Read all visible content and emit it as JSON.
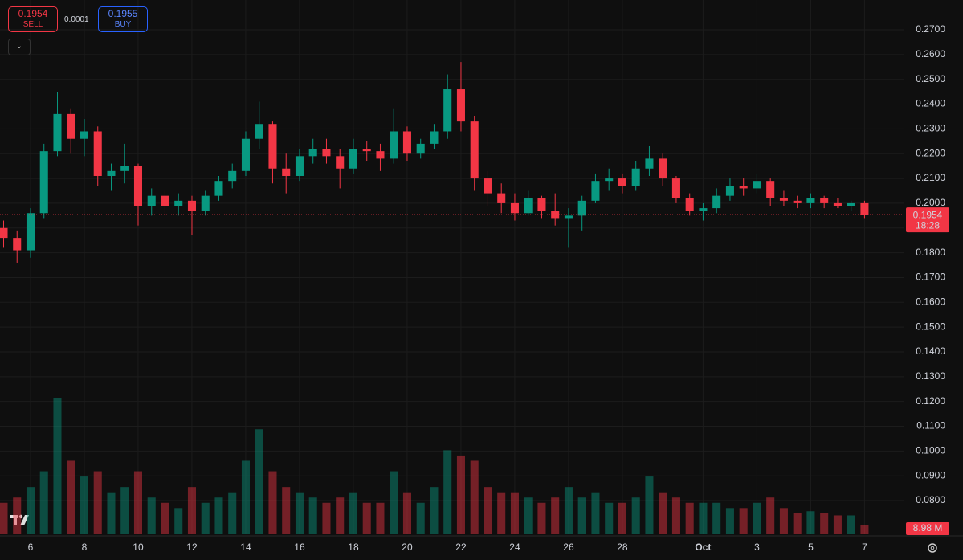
{
  "order_panel": {
    "sell_price": "0.1954",
    "sell_label": "SELL",
    "spread": "0.0001",
    "buy_price": "0.1955",
    "buy_label": "BUY"
  },
  "chart_data": {
    "type": "candlestick",
    "x": [
      5,
      5.5,
      6,
      6.5,
      7,
      7.5,
      8,
      8.5,
      9,
      9.5,
      10,
      10.5,
      11,
      11.5,
      12,
      12.5,
      13,
      13.5,
      14,
      14.5,
      15,
      15.5,
      16,
      16.5,
      17,
      17.5,
      18,
      18.5,
      19,
      19.5,
      20,
      20.5,
      21,
      21.5,
      22,
      22.5,
      23,
      23.5,
      24,
      24.5,
      25,
      25.5,
      26,
      26.5,
      27,
      27.5,
      28,
      28.5,
      29,
      29.5,
      30,
      30.5,
      31,
      31.5,
      32,
      32.5,
      33,
      33.5,
      34,
      34.5,
      35,
      35.5,
      36,
      36.5,
      37
    ],
    "open": [
      0.19,
      0.186,
      0.181,
      0.196,
      0.221,
      0.236,
      0.226,
      0.229,
      0.211,
      0.213,
      0.215,
      0.199,
      0.203,
      0.199,
      0.201,
      0.197,
      0.203,
      0.209,
      0.213,
      0.226,
      0.232,
      0.214,
      0.211,
      0.219,
      0.222,
      0.219,
      0.214,
      0.222,
      0.221,
      0.218,
      0.229,
      0.22,
      0.224,
      0.229,
      0.246,
      0.233,
      0.21,
      0.204,
      0.2,
      0.196,
      0.202,
      0.197,
      0.194,
      0.195,
      0.201,
      0.209,
      0.21,
      0.207,
      0.214,
      0.218,
      0.21,
      0.202,
      0.197,
      0.198,
      0.203,
      0.207,
      0.206,
      0.209,
      0.202,
      0.201,
      0.2,
      0.202,
      0.2,
      0.199,
      0.2
    ],
    "high": [
      0.193,
      0.189,
      0.198,
      0.224,
      0.245,
      0.238,
      0.234,
      0.231,
      0.216,
      0.224,
      0.216,
      0.206,
      0.205,
      0.204,
      0.203,
      0.205,
      0.211,
      0.216,
      0.229,
      0.241,
      0.233,
      0.22,
      0.222,
      0.226,
      0.226,
      0.222,
      0.226,
      0.225,
      0.224,
      0.238,
      0.231,
      0.226,
      0.232,
      0.252,
      0.257,
      0.235,
      0.213,
      0.208,
      0.204,
      0.205,
      0.203,
      0.204,
      0.198,
      0.203,
      0.212,
      0.214,
      0.212,
      0.217,
      0.223,
      0.22,
      0.211,
      0.204,
      0.2,
      0.206,
      0.21,
      0.21,
      0.212,
      0.21,
      0.205,
      0.203,
      0.204,
      0.203,
      0.202,
      0.201,
      0.201
    ],
    "low": [
      0.182,
      0.176,
      0.178,
      0.194,
      0.219,
      0.22,
      0.219,
      0.207,
      0.205,
      0.208,
      0.191,
      0.195,
      0.196,
      0.195,
      0.187,
      0.195,
      0.201,
      0.206,
      0.211,
      0.222,
      0.208,
      0.204,
      0.209,
      0.216,
      0.216,
      0.206,
      0.212,
      0.217,
      0.213,
      0.216,
      0.217,
      0.218,
      0.222,
      0.226,
      0.229,
      0.205,
      0.199,
      0.196,
      0.193,
      0.195,
      0.194,
      0.191,
      0.182,
      0.189,
      0.2,
      0.205,
      0.204,
      0.205,
      0.211,
      0.207,
      0.2,
      0.195,
      0.193,
      0.196,
      0.201,
      0.203,
      0.204,
      0.199,
      0.199,
      0.198,
      0.198,
      0.198,
      0.198,
      0.197,
      0.194
    ],
    "close": [
      0.186,
      0.181,
      0.196,
      0.221,
      0.236,
      0.226,
      0.229,
      0.211,
      0.213,
      0.215,
      0.199,
      0.203,
      0.199,
      0.201,
      0.197,
      0.203,
      0.209,
      0.213,
      0.226,
      0.232,
      0.214,
      0.211,
      0.219,
      0.222,
      0.219,
      0.214,
      0.222,
      0.221,
      0.218,
      0.229,
      0.22,
      0.224,
      0.229,
      0.246,
      0.233,
      0.21,
      0.204,
      0.2,
      0.196,
      0.202,
      0.197,
      0.194,
      0.195,
      0.201,
      0.209,
      0.21,
      0.207,
      0.214,
      0.218,
      0.21,
      0.202,
      0.197,
      0.198,
      0.203,
      0.207,
      0.206,
      0.209,
      0.202,
      0.201,
      0.2,
      0.202,
      0.2,
      0.199,
      0.2,
      0.1954
    ],
    "volume": [
      30,
      35,
      45,
      60,
      130,
      70,
      55,
      60,
      40,
      45,
      60,
      35,
      30,
      25,
      45,
      30,
      35,
      40,
      70,
      100,
      60,
      45,
      40,
      35,
      30,
      35,
      40,
      30,
      30,
      60,
      40,
      30,
      45,
      80,
      75,
      70,
      45,
      40,
      40,
      35,
      30,
      35,
      45,
      35,
      40,
      30,
      30,
      35,
      55,
      40,
      35,
      30,
      30,
      30,
      25,
      25,
      30,
      35,
      25,
      20,
      22,
      20,
      18,
      18,
      8.98
    ],
    "up_color": "#089981",
    "down_color": "#f23645",
    "xlim": [
      4.866,
      38.45
    ],
    "xticks": [
      6,
      8,
      10,
      12,
      14,
      16,
      18,
      20,
      22,
      24,
      26,
      28,
      {
        "value": 31,
        "label": "Oct"
      },
      {
        "value": 33,
        "label": "3"
      },
      {
        "value": 35,
        "label": "5"
      },
      {
        "value": 37,
        "label": "7"
      }
    ],
    "ylim": [
      0.0664,
      0.282
    ],
    "yticks": [
      {
        "value": 0.08,
        "label": "0.0800"
      },
      {
        "value": 0.09,
        "label": "0.0900"
      },
      {
        "value": 0.1,
        "label": "0.1000"
      },
      {
        "value": 0.11,
        "label": "0.1100"
      },
      {
        "value": 0.12,
        "label": "0.1200"
      },
      {
        "value": 0.13,
        "label": "0.1300"
      },
      {
        "value": 0.14,
        "label": "0.1400"
      },
      {
        "value": 0.15,
        "label": "0.1500"
      },
      {
        "value": 0.16,
        "label": "0.1600"
      },
      {
        "value": 0.17,
        "label": "0.1700"
      },
      {
        "value": 0.18,
        "label": "0.1800"
      },
      {
        "value": 0.19,
        "label": "0.1900"
      },
      {
        "value": 0.2,
        "label": "0.2000"
      },
      {
        "value": 0.21,
        "label": "0.2100"
      },
      {
        "value": 0.22,
        "label": "0.2200"
      },
      {
        "value": 0.23,
        "label": "0.2300"
      },
      {
        "value": 0.24,
        "label": "0.2400"
      },
      {
        "value": 0.25,
        "label": "0.2500"
      },
      {
        "value": 0.26,
        "label": "0.2600"
      },
      {
        "value": 0.27,
        "label": "0.2700"
      }
    ],
    "grid": true,
    "last_price": {
      "value": 0.1954,
      "label": "0.1954"
    },
    "countdown": "18:28",
    "last_volume": {
      "value": 8.98,
      "label": "8.98 M"
    }
  }
}
